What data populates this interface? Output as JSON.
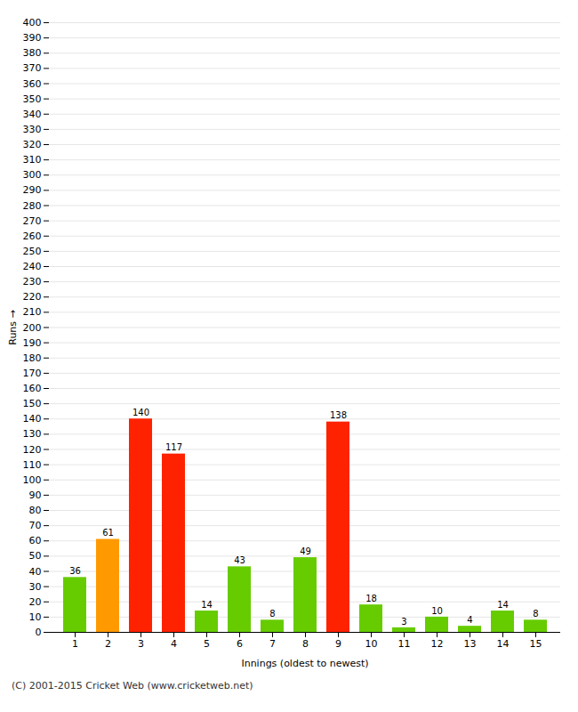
{
  "chart_data": {
    "type": "bar",
    "categories": [
      1,
      2,
      3,
      4,
      5,
      6,
      7,
      8,
      9,
      10,
      11,
      12,
      13,
      14,
      15
    ],
    "values": [
      36,
      61,
      140,
      117,
      14,
      43,
      8,
      49,
      138,
      18,
      3,
      10,
      4,
      14,
      8
    ],
    "colors": [
      "#66cc00",
      "#ff9900",
      "#ff2200",
      "#ff2200",
      "#66cc00",
      "#66cc00",
      "#66cc00",
      "#66cc00",
      "#ff2200",
      "#66cc00",
      "#66cc00",
      "#66cc00",
      "#66cc00",
      "#66cc00",
      "#66cc00"
    ],
    "xlabel": "Innings (oldest to newest)",
    "ylabel": "Runs",
    "ylim": [
      0,
      400
    ],
    "yticks": [
      0,
      10,
      20,
      30,
      40,
      50,
      60,
      70,
      80,
      90,
      100,
      110,
      120,
      130,
      140,
      150,
      160,
      170,
      180,
      190,
      200,
      210,
      220,
      230,
      240,
      250,
      260,
      270,
      280,
      290,
      300,
      310,
      320,
      330,
      340,
      350,
      360,
      370,
      380,
      390,
      400
    ],
    "grid": true,
    "data_labels": true,
    "footer": "(C) 2001-2015 Cricket Web (www.cricketweb.net)"
  }
}
